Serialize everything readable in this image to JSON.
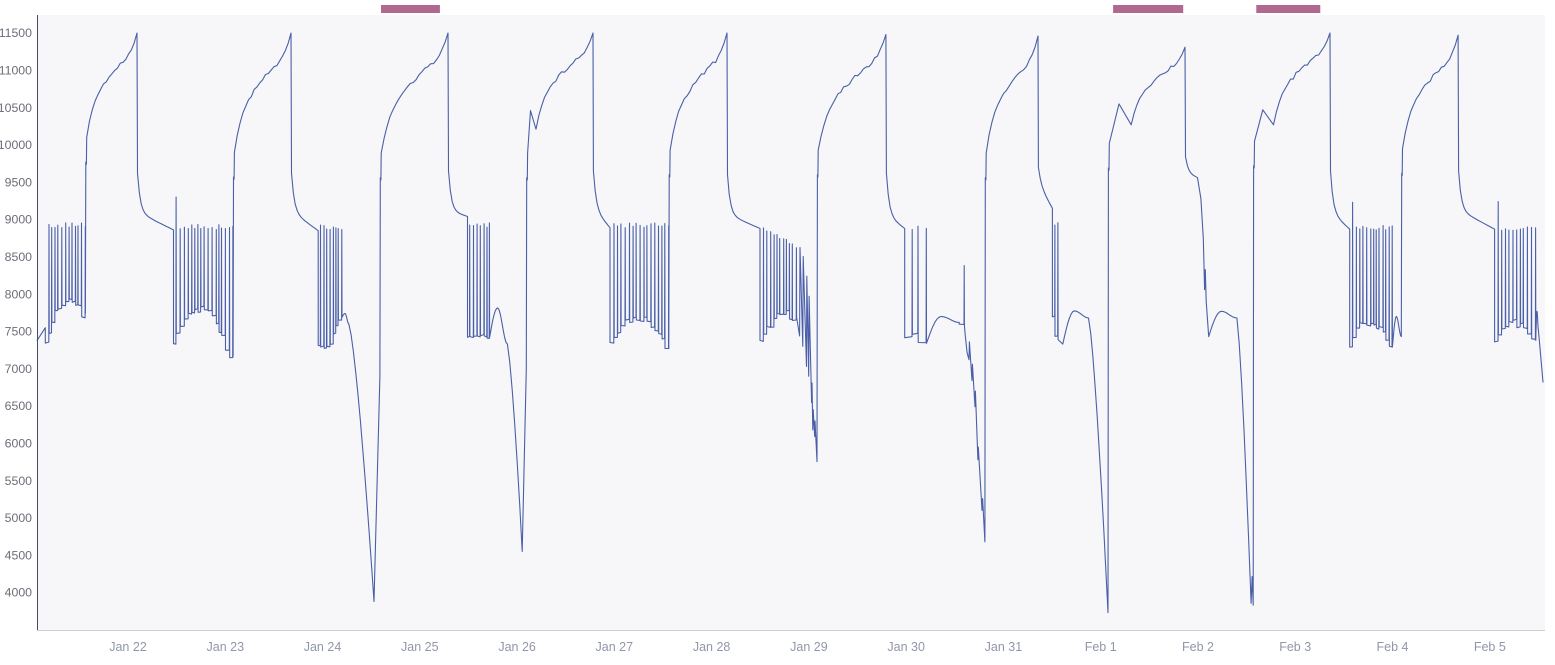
{
  "chart_data": {
    "type": "line",
    "x_ticks": [
      "Jan 22",
      "Jan 23",
      "Jan 24",
      "Jan 25",
      "Jan 26",
      "Jan 27",
      "Jan 28",
      "Jan 29",
      "Jan 30",
      "Jan 31",
      "Feb 1",
      "Feb 2",
      "Feb 3",
      "Feb 4",
      "Feb 5"
    ],
    "y_ticks": [
      4000,
      4500,
      5000,
      5500,
      6000,
      6500,
      7000,
      7500,
      8000,
      8500,
      9000,
      9500,
      10000,
      10500,
      11000,
      11500
    ],
    "y_range": [
      3500,
      11740
    ],
    "x_range_days": [
      0.065,
      15.547
    ],
    "legend": false,
    "grid": false,
    "colors": {
      "line": "#4a5fa8",
      "plot_bg": "#f7f7f9",
      "axis_left": "#464c61",
      "axis_bottom": "#ccced6",
      "y_label": "#6b6e78",
      "x_label": "#9097a8",
      "annotation": "#b0688e"
    },
    "annotations": [
      {
        "d0": 3.601,
        "d1": 4.207
      },
      {
        "d0": 11.127,
        "d1": 11.848
      },
      {
        "d0": 12.6,
        "d1": 13.258
      }
    ],
    "segments": [
      {
        "t": "start",
        "d": 0.065,
        "v": 7380
      },
      {
        "t": "line",
        "d": 0.15,
        "v": 7550
      },
      {
        "t": "burst",
        "d1": 0.548,
        "n": 12,
        "top": 8920,
        "b": [
          7390,
          7870,
          7740
        ]
      },
      {
        "t": "jump",
        "top": 10100
      },
      {
        "t": "climb",
        "d": 1.093,
        "v": 11500
      },
      {
        "t": "drop",
        "dv": 9620,
        "plat": 9100,
        "endd": 1.468,
        "endv": 8860
      },
      {
        "t": "burst",
        "d1": 2.059,
        "n": 17,
        "top": 8900,
        "ft": 9300,
        "b": [
          7340,
          7780,
          7160
        ]
      },
      {
        "t": "jump",
        "top": 9900
      },
      {
        "t": "climb",
        "d": 2.676,
        "v": 11500
      },
      {
        "t": "drop",
        "dv": 9620,
        "plat": 9110,
        "endd": 2.955,
        "endv": 8850
      },
      {
        "t": "burst",
        "d1": 3.205,
        "n": 8,
        "top": 8900,
        "b": [
          7360,
          7330,
          7690
        ]
      },
      {
        "t": "hump",
        "d1": 3.27,
        "vp": 7740,
        "v1": 7600
      },
      {
        "t": "vee",
        "d1": 3.529,
        "v": 3880
      },
      {
        "t": "line",
        "d": 3.59,
        "v": 6900
      },
      {
        "t": "jump",
        "top": 9890
      },
      {
        "t": "climb",
        "d": 4.29,
        "v": 11500
      },
      {
        "t": "drop",
        "dv": 9650,
        "plat": 9120,
        "endd": 4.49,
        "endv": 9040
      },
      {
        "t": "burst",
        "d1": 4.715,
        "n": 7,
        "top": 8930,
        "b": [
          7450,
          7430,
          7420
        ]
      },
      {
        "t": "hump",
        "d1": 4.9,
        "vp": 7815,
        "v1": 7330
      },
      {
        "t": "vee",
        "d1": 5.053,
        "v": 4550
      },
      {
        "t": "line",
        "d": 5.095,
        "v": 7000
      },
      {
        "t": "jump",
        "top": 9890,
        "ov": 10460,
        "ovd": 0.03,
        "ovdip": 10210
      },
      {
        "t": "climb",
        "d": 5.78,
        "v": 11500
      },
      {
        "t": "drop",
        "dv": 9650,
        "plat": 9140,
        "endd": 5.955,
        "endv": 8890
      },
      {
        "t": "burst",
        "d1": 6.51,
        "n": 16,
        "top": 8920,
        "b": [
          7340,
          7690,
          7270
        ]
      },
      {
        "t": "jump",
        "top": 9930
      },
      {
        "t": "climb",
        "d": 7.158,
        "v": 11500
      },
      {
        "t": "drop",
        "dv": 9600,
        "plat": 9070,
        "endd": 7.497,
        "endv": 8880
      },
      {
        "t": "burst",
        "d1": 7.878,
        "n": 11,
        "top": 8890,
        "tope": 8640,
        "b": [
          7370,
          7700,
          7690
        ]
      },
      {
        "t": "zig",
        "pts": [
          [
            7.905,
            7440
          ],
          [
            7.909,
            8625
          ],
          [
            7.937,
            7300
          ],
          [
            7.941,
            8505
          ],
          [
            7.975,
            7030
          ],
          [
            7.979,
            8240
          ],
          [
            7.998,
            6900
          ],
          [
            8.002,
            7970
          ],
          [
            8.028,
            6545
          ],
          [
            8.032,
            6810
          ],
          [
            8.04,
            6180
          ],
          [
            8.044,
            6450
          ],
          [
            8.06,
            6090
          ],
          [
            8.063,
            6300
          ],
          [
            8.083,
            5755
          ]
        ]
      },
      {
        "t": "jump",
        "top": 9930
      },
      {
        "t": "climb",
        "d": 8.792,
        "v": 11480
      },
      {
        "t": "drop",
        "dv": 9620,
        "plat": 9060,
        "endd": 8.985,
        "endv": 8880
      },
      {
        "t": "burst",
        "d1": 9.195,
        "n": 3,
        "top": 8890,
        "b": [
          7430,
          7450,
          7340
        ]
      },
      {
        "t": "hump",
        "d1": 9.545,
        "vp": 7700,
        "v1": 7620
      },
      {
        "t": "burst",
        "d1": 9.59,
        "n": 1,
        "top": 8370,
        "b": [
          7610,
          7620,
          7590
        ]
      },
      {
        "t": "zig",
        "pts": [
          [
            9.605,
            7480
          ],
          [
            9.626,
            7215
          ],
          [
            9.646,
            7120
          ],
          [
            9.65,
            7360
          ],
          [
            9.677,
            6840
          ],
          [
            9.681,
            7060
          ],
          [
            9.708,
            6490
          ],
          [
            9.712,
            6700
          ],
          [
            9.738,
            5780
          ],
          [
            9.742,
            5950
          ],
          [
            9.78,
            5100
          ],
          [
            9.786,
            5260
          ],
          [
            9.81,
            4680
          ]
        ]
      },
      {
        "t": "jump",
        "top": 9890
      },
      {
        "t": "climb",
        "d": 10.355,
        "v": 11460
      },
      {
        "t": "drop",
        "dv": 9700,
        "plat": 9480,
        "endd": 10.503,
        "endv": 9150
      },
      {
        "t": "burst",
        "d1": 10.56,
        "n": 2,
        "top": 8930,
        "b": [
          7650,
          7540,
          7390
        ]
      },
      {
        "t": "line",
        "d": 10.61,
        "v": 7330
      },
      {
        "t": "hump",
        "d1": 10.875,
        "vp": 7775,
        "v1": 7680
      },
      {
        "t": "vee",
        "d1": 11.075,
        "v": 3730
      },
      {
        "t": "jump",
        "top": 10020,
        "ov": 10550,
        "ovd": 0.1,
        "ovdip": 10270
      },
      {
        "t": "climb",
        "d": 11.867,
        "v": 11310
      },
      {
        "t": "drop",
        "dv": 9840,
        "plat": 9620,
        "endd": 11.995,
        "endv": 9560
      },
      {
        "t": "line",
        "d": 12.03,
        "v": 9280
      },
      {
        "t": "line",
        "d": 12.055,
        "v": 8750
      },
      {
        "t": "line",
        "d": 12.068,
        "v": 8060
      },
      {
        "t": "line",
        "d": 12.075,
        "v": 8330
      },
      {
        "t": "line",
        "d": 12.085,
        "v": 7900
      },
      {
        "t": "line",
        "d": 12.11,
        "v": 7430
      },
      {
        "t": "hump",
        "d1": 12.4,
        "vp": 7770,
        "v1": 7680
      },
      {
        "t": "vee",
        "d1": 12.546,
        "v": 3855
      },
      {
        "t": "line",
        "d": 12.557,
        "v": 4215
      },
      {
        "t": "line",
        "d": 12.568,
        "v": 3830
      },
      {
        "t": "jump",
        "top": 10050,
        "ov": 10470,
        "ovd": 0.085,
        "ovdip": 10270
      },
      {
        "t": "climb",
        "d": 13.357,
        "v": 11500
      },
      {
        "t": "drop",
        "dv": 9650,
        "plat": 9100,
        "endd": 13.56,
        "endv": 8870
      },
      {
        "t": "burst",
        "d1": 13.995,
        "n": 13,
        "top": 8890,
        "ft": 9230,
        "b": [
          7340,
          7640,
          7290
        ]
      },
      {
        "t": "hump",
        "d1": 14.09,
        "vp": 7700,
        "v1": 7430
      },
      {
        "t": "jump",
        "top": 9950
      },
      {
        "t": "climb",
        "d": 14.674,
        "v": 11470
      },
      {
        "t": "drop",
        "dv": 9650,
        "plat": 9130,
        "endd": 15.05,
        "endv": 8870
      },
      {
        "t": "burst",
        "d1": 15.435,
        "n": 11,
        "top": 8890,
        "ft": 9240,
        "b": [
          7340,
          7610,
          7380
        ]
      },
      {
        "t": "hump",
        "d1": 15.5,
        "vp": 7770,
        "v1": 7520
      },
      {
        "t": "line",
        "d": 15.547,
        "v": 6820
      }
    ]
  }
}
